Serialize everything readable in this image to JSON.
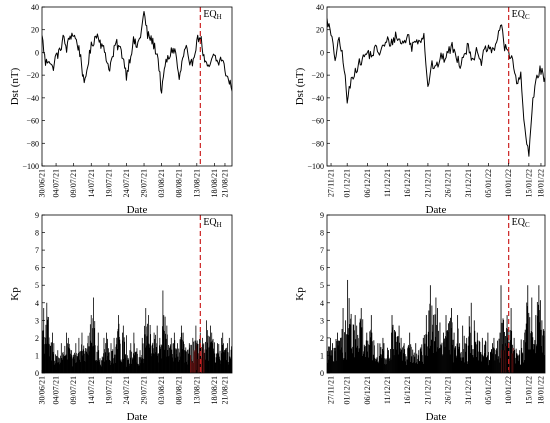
{
  "chart_data": [
    {
      "id": "dst_h",
      "type": "line",
      "xlabel": "Date",
      "ylabel": "Dst (nT)",
      "ylim": [
        -100,
        40
      ],
      "yticks": [
        40,
        20,
        0,
        -20,
        -40,
        -60,
        -80,
        -100
      ],
      "x_range": [
        "2021-06-30",
        "2021-08-23"
      ],
      "xticks": [
        "30/06/21",
        "04/07/21",
        "09/07/21",
        "14/07/21",
        "19/07/21",
        "24/07/21",
        "29/07/21",
        "03/08/21",
        "08/08/21",
        "13/08/21",
        "18/08/21",
        "21/08/21"
      ],
      "xtick_dates": [
        "2021-06-30",
        "2021-07-04",
        "2021-07-09",
        "2021-07-14",
        "2021-07-19",
        "2021-07-24",
        "2021-07-29",
        "2021-08-03",
        "2021-08-08",
        "2021-08-13",
        "2021-08-18",
        "2021-08-21"
      ],
      "event": {
        "date": "2021-08-14",
        "label": "EQ",
        "sub": "H",
        "color": "#cc2222"
      },
      "points": [
        [
          "2021-06-30",
          15
        ],
        [
          "2021-07-01",
          -10
        ],
        [
          "2021-07-02",
          -5
        ],
        [
          "2021-07-03",
          -15
        ],
        [
          "2021-07-04",
          -3
        ],
        [
          "2021-07-05",
          0
        ],
        [
          "2021-07-06",
          13
        ],
        [
          "2021-07-07",
          3
        ],
        [
          "2021-07-08",
          15
        ],
        [
          "2021-07-09",
          16
        ],
        [
          "2021-07-10",
          8
        ],
        [
          "2021-07-11",
          -3
        ],
        [
          "2021-07-12",
          -31
        ],
        [
          "2021-07-13",
          -10
        ],
        [
          "2021-07-14",
          5
        ],
        [
          "2021-07-15",
          13
        ],
        [
          "2021-07-16",
          16
        ],
        [
          "2021-07-17",
          5
        ],
        [
          "2021-07-18",
          0
        ],
        [
          "2021-07-19",
          -15
        ],
        [
          "2021-07-20",
          -5
        ],
        [
          "2021-07-21",
          8
        ],
        [
          "2021-07-22",
          4
        ],
        [
          "2021-07-23",
          -3
        ],
        [
          "2021-07-24",
          -20
        ],
        [
          "2021-07-25",
          -5
        ],
        [
          "2021-07-26",
          10
        ],
        [
          "2021-07-27",
          5
        ],
        [
          "2021-07-28",
          15
        ],
        [
          "2021-07-29",
          35
        ],
        [
          "2021-07-30",
          15
        ],
        [
          "2021-07-31",
          12
        ],
        [
          "2021-08-01",
          5
        ],
        [
          "2021-08-02",
          -5
        ],
        [
          "2021-08-03",
          -37
        ],
        [
          "2021-08-04",
          -10
        ],
        [
          "2021-08-05",
          -5
        ],
        [
          "2021-08-06",
          3
        ],
        [
          "2021-08-07",
          0
        ],
        [
          "2021-08-08",
          -25
        ],
        [
          "2021-08-09",
          -5
        ],
        [
          "2021-08-10",
          5
        ],
        [
          "2021-08-11",
          -15
        ],
        [
          "2021-08-12",
          -5
        ],
        [
          "2021-08-13",
          10
        ],
        [
          "2021-08-14",
          15
        ],
        [
          "2021-08-15",
          -5
        ],
        [
          "2021-08-16",
          -15
        ],
        [
          "2021-08-17",
          -10
        ],
        [
          "2021-08-18",
          -2
        ],
        [
          "2021-08-19",
          -10
        ],
        [
          "2021-08-20",
          -5
        ],
        [
          "2021-08-21",
          -15
        ],
        [
          "2021-08-22",
          -25
        ],
        [
          "2021-08-23",
          -30
        ]
      ]
    },
    {
      "id": "dst_c",
      "type": "line",
      "xlabel": "Date",
      "ylabel": "Dst (nT)",
      "ylim": [
        -100,
        40
      ],
      "yticks": [
        40,
        20,
        0,
        -20,
        -40,
        -60,
        -80,
        -100
      ],
      "x_range": [
        "2021-11-26",
        "2022-01-19"
      ],
      "xticks": [
        "27/11/21",
        "01/12/21",
        "06/12/21",
        "11/12/21",
        "16/12/21",
        "21/12/21",
        "26/12/21",
        "31/12/21",
        "05/01/22",
        "10/01/22",
        "15/01/22",
        "18/01/22"
      ],
      "xtick_dates": [
        "2021-11-27",
        "2021-12-01",
        "2021-12-06",
        "2021-12-11",
        "2021-12-16",
        "2021-12-21",
        "2021-12-26",
        "2021-12-31",
        "2022-01-05",
        "2022-01-10",
        "2022-01-15",
        "2022-01-18"
      ],
      "event": {
        "date": "2022-01-10",
        "label": "EQ",
        "sub": "C",
        "color": "#cc2222"
      },
      "points": [
        [
          "2021-11-26",
          30
        ],
        [
          "2021-11-27",
          15
        ],
        [
          "2021-11-28",
          -5
        ],
        [
          "2021-11-29",
          10
        ],
        [
          "2021-11-30",
          -5
        ],
        [
          "2021-12-01",
          -43
        ],
        [
          "2021-12-02",
          -25
        ],
        [
          "2021-12-03",
          -15
        ],
        [
          "2021-12-04",
          -10
        ],
        [
          "2021-12-05",
          -5
        ],
        [
          "2021-12-06",
          0
        ],
        [
          "2021-12-07",
          -3
        ],
        [
          "2021-12-08",
          3
        ],
        [
          "2021-12-09",
          0
        ],
        [
          "2021-12-10",
          5
        ],
        [
          "2021-12-11",
          10
        ],
        [
          "2021-12-12",
          8
        ],
        [
          "2021-12-13",
          15
        ],
        [
          "2021-12-14",
          10
        ],
        [
          "2021-12-15",
          8
        ],
        [
          "2021-12-16",
          15
        ],
        [
          "2021-12-17",
          5
        ],
        [
          "2021-12-18",
          10
        ],
        [
          "2021-12-19",
          12
        ],
        [
          "2021-12-20",
          15
        ],
        [
          "2021-12-21",
          -30
        ],
        [
          "2021-12-22",
          -10
        ],
        [
          "2021-12-23",
          -15
        ],
        [
          "2021-12-24",
          -5
        ],
        [
          "2021-12-25",
          -5
        ],
        [
          "2021-12-26",
          0
        ],
        [
          "2021-12-27",
          5
        ],
        [
          "2021-12-28",
          -3
        ],
        [
          "2021-12-29",
          -10
        ],
        [
          "2021-12-30",
          0
        ],
        [
          "2021-12-31",
          5
        ],
        [
          "2022-01-01",
          -5
        ],
        [
          "2022-01-02",
          0
        ],
        [
          "2022-01-03",
          -10
        ],
        [
          "2022-01-04",
          0
        ],
        [
          "2022-01-05",
          5
        ],
        [
          "2022-01-06",
          0
        ],
        [
          "2022-01-07",
          10
        ],
        [
          "2022-01-08",
          25
        ],
        [
          "2022-01-09",
          5
        ],
        [
          "2022-01-10",
          0
        ],
        [
          "2022-01-11",
          -5
        ],
        [
          "2022-01-12",
          -30
        ],
        [
          "2022-01-13",
          -20
        ],
        [
          "2022-01-14",
          -70
        ],
        [
          "2022-01-15",
          -91
        ],
        [
          "2022-01-16",
          -40
        ],
        [
          "2022-01-17",
          -20
        ],
        [
          "2022-01-18",
          -15
        ],
        [
          "2022-01-19",
          -25
        ]
      ]
    },
    {
      "id": "kp_h",
      "type": "bar",
      "xlabel": "Date",
      "ylabel": "Kp",
      "ylim": [
        0,
        9
      ],
      "yticks": [
        0,
        1,
        2,
        3,
        4,
        5,
        6,
        7,
        8,
        9
      ],
      "x_range": [
        "2021-06-30",
        "2021-08-23"
      ],
      "xticks": [
        "30/06/21",
        "04/07/21",
        "09/07/21",
        "14/07/21",
        "19/07/21",
        "24/07/21",
        "29/07/21",
        "03/08/21",
        "08/08/21",
        "13/08/21",
        "18/08/21",
        "21/08/21"
      ],
      "xtick_dates": [
        "2021-06-30",
        "2021-07-04",
        "2021-07-09",
        "2021-07-14",
        "2021-07-19",
        "2021-07-24",
        "2021-07-29",
        "2021-08-03",
        "2021-08-08",
        "2021-08-13",
        "2021-08-18",
        "2021-08-21"
      ],
      "event": {
        "date": "2021-08-14",
        "label": "EQ",
        "sub": "H",
        "color": "#cc2222"
      },
      "highlight": {
        "start": "2021-08-11",
        "end": "2021-08-15",
        "color": "#8b1a1a"
      },
      "daily_max": [
        [
          "2021-06-30",
          3.7
        ],
        [
          "2021-07-01",
          4.0
        ],
        [
          "2021-07-02",
          2.3
        ],
        [
          "2021-07-03",
          1.7
        ],
        [
          "2021-07-04",
          1.3
        ],
        [
          "2021-07-05",
          1.7
        ],
        [
          "2021-07-06",
          2.3
        ],
        [
          "2021-07-07",
          2.0
        ],
        [
          "2021-07-08",
          1.3
        ],
        [
          "2021-07-09",
          1.7
        ],
        [
          "2021-07-10",
          2.0
        ],
        [
          "2021-07-11",
          2.3
        ],
        [
          "2021-07-12",
          1.7
        ],
        [
          "2021-07-13",
          3.3
        ],
        [
          "2021-07-14",
          4.3
        ],
        [
          "2021-07-15",
          2.3
        ],
        [
          "2021-07-16",
          1.3
        ],
        [
          "2021-07-17",
          2.0
        ],
        [
          "2021-07-18",
          2.3
        ],
        [
          "2021-07-19",
          1.7
        ],
        [
          "2021-07-20",
          2.0
        ],
        [
          "2021-07-21",
          3.3
        ],
        [
          "2021-07-22",
          2.3
        ],
        [
          "2021-07-23",
          2.7
        ],
        [
          "2021-07-24",
          1.3
        ],
        [
          "2021-07-25",
          1.7
        ],
        [
          "2021-07-26",
          2.3
        ],
        [
          "2021-07-27",
          1.3
        ],
        [
          "2021-07-28",
          2.0
        ],
        [
          "2021-07-29",
          3.7
        ],
        [
          "2021-07-30",
          3.3
        ],
        [
          "2021-07-31",
          2.3
        ],
        [
          "2021-08-01",
          2.7
        ],
        [
          "2021-08-02",
          2.0
        ],
        [
          "2021-08-03",
          4.7
        ],
        [
          "2021-08-04",
          2.7
        ],
        [
          "2021-08-05",
          2.0
        ],
        [
          "2021-08-06",
          2.3
        ],
        [
          "2021-08-07",
          1.7
        ],
        [
          "2021-08-08",
          2.7
        ],
        [
          "2021-08-09",
          2.3
        ],
        [
          "2021-08-10",
          1.7
        ],
        [
          "2021-08-11",
          2.0
        ],
        [
          "2021-08-12",
          2.7
        ],
        [
          "2021-08-13",
          2.3
        ],
        [
          "2021-08-14",
          2.0
        ],
        [
          "2021-08-15",
          3.0
        ],
        [
          "2021-08-16",
          2.7
        ],
        [
          "2021-08-17",
          2.3
        ],
        [
          "2021-08-18",
          1.7
        ],
        [
          "2021-08-19",
          2.0
        ],
        [
          "2021-08-20",
          2.3
        ],
        [
          "2021-08-21",
          1.7
        ],
        [
          "2021-08-22",
          2.0
        ],
        [
          "2021-08-23",
          2.7
        ]
      ]
    },
    {
      "id": "kp_c",
      "type": "bar",
      "xlabel": "Date",
      "ylabel": "Kp",
      "ylim": [
        0,
        9
      ],
      "yticks": [
        0,
        1,
        2,
        3,
        4,
        5,
        6,
        7,
        8,
        9
      ],
      "x_range": [
        "2021-11-26",
        "2022-01-19"
      ],
      "xticks": [
        "27/11/21",
        "01/12/21",
        "06/12/21",
        "11/12/21",
        "16/12/21",
        "21/12/21",
        "26/12/21",
        "31/12/21",
        "05/01/22",
        "10/01/22",
        "15/01/22",
        "18/01/22"
      ],
      "xtick_dates": [
        "2021-11-27",
        "2021-12-01",
        "2021-12-06",
        "2021-12-11",
        "2021-12-16",
        "2021-12-21",
        "2021-12-26",
        "2021-12-31",
        "2022-01-05",
        "2022-01-10",
        "2022-01-15",
        "2022-01-18"
      ],
      "event": {
        "date": "2022-01-10",
        "label": "EQ",
        "sub": "C",
        "color": "#cc2222"
      },
      "highlight": {
        "start": "2022-01-08",
        "end": "2022-01-11",
        "color": "#8b1a1a"
      },
      "daily_max": [
        [
          "2021-11-26",
          2.0
        ],
        [
          "2021-11-27",
          1.7
        ],
        [
          "2021-11-28",
          2.3
        ],
        [
          "2021-11-29",
          3.7
        ],
        [
          "2021-11-30",
          3.0
        ],
        [
          "2021-12-01",
          5.3
        ],
        [
          "2021-12-02",
          3.3
        ],
        [
          "2021-12-03",
          2.7
        ],
        [
          "2021-12-04",
          3.7
        ],
        [
          "2021-12-05",
          2.3
        ],
        [
          "2021-12-06",
          3.3
        ],
        [
          "2021-12-07",
          2.3
        ],
        [
          "2021-12-08",
          1.7
        ],
        [
          "2021-12-09",
          2.0
        ],
        [
          "2021-12-10",
          1.7
        ],
        [
          "2021-12-11",
          2.3
        ],
        [
          "2021-12-12",
          3.3
        ],
        [
          "2021-12-13",
          2.7
        ],
        [
          "2021-12-14",
          2.0
        ],
        [
          "2021-12-15",
          1.7
        ],
        [
          "2021-12-16",
          2.3
        ],
        [
          "2021-12-17",
          1.7
        ],
        [
          "2021-12-18",
          1.3
        ],
        [
          "2021-12-19",
          2.0
        ],
        [
          "2021-12-20",
          3.3
        ],
        [
          "2021-12-21",
          5.0
        ],
        [
          "2021-12-22",
          4.3
        ],
        [
          "2021-12-23",
          3.7
        ],
        [
          "2021-12-24",
          2.3
        ],
        [
          "2021-12-25",
          3.3
        ],
        [
          "2021-12-26",
          3.7
        ],
        [
          "2021-12-27",
          2.3
        ],
        [
          "2021-12-28",
          3.3
        ],
        [
          "2021-12-29",
          2.7
        ],
        [
          "2021-12-30",
          2.0
        ],
        [
          "2021-12-31",
          4.0
        ],
        [
          "2022-01-01",
          3.0
        ],
        [
          "2022-01-02",
          2.3
        ],
        [
          "2022-01-03",
          2.0
        ],
        [
          "2022-01-04",
          2.3
        ],
        [
          "2022-01-05",
          1.7
        ],
        [
          "2022-01-06",
          2.0
        ],
        [
          "2022-01-07",
          2.3
        ],
        [
          "2022-01-08",
          5.0
        ],
        [
          "2022-01-09",
          3.3
        ],
        [
          "2022-01-10",
          3.7
        ],
        [
          "2022-01-11",
          2.0
        ],
        [
          "2022-01-12",
          1.3
        ],
        [
          "2022-01-13",
          2.3
        ],
        [
          "2022-01-14",
          5.0
        ],
        [
          "2022-01-15",
          4.3
        ],
        [
          "2022-01-16",
          3.3
        ],
        [
          "2022-01-17",
          5.0
        ],
        [
          "2022-01-18",
          3.0
        ],
        [
          "2022-01-19",
          2.0
        ]
      ]
    }
  ]
}
